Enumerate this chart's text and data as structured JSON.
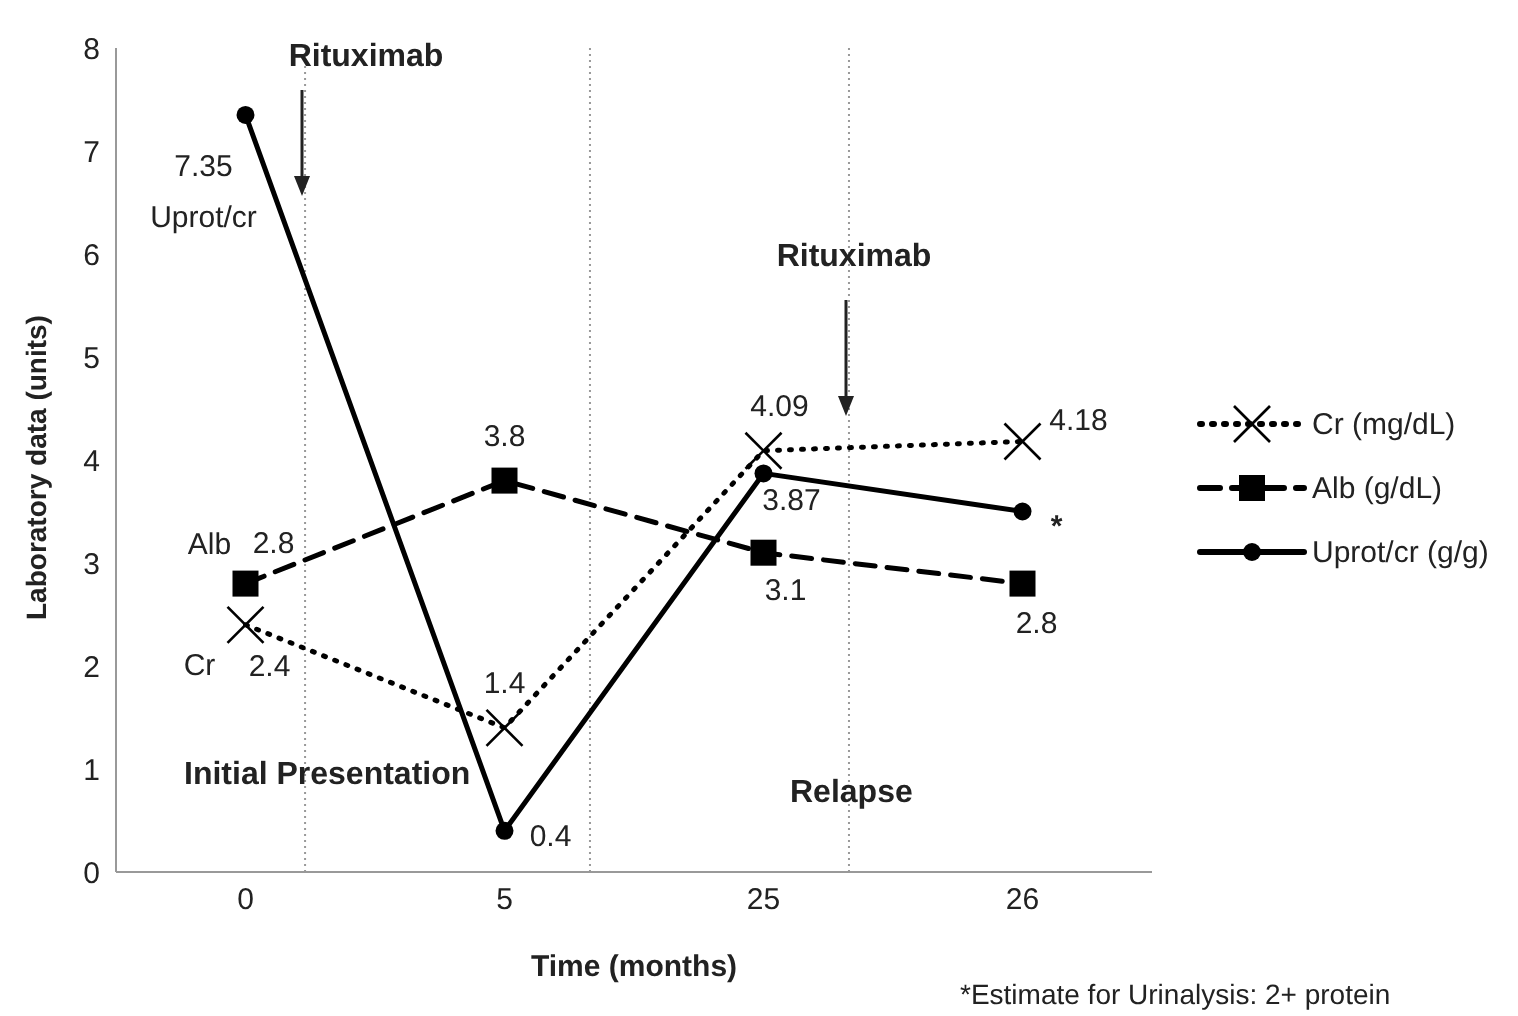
{
  "chart_data": {
    "type": "line",
    "xlabel": "Time (months)",
    "ylabel": "Laboratory data (units)",
    "categories": [
      "0",
      "5",
      "25",
      "26"
    ],
    "ylim": [
      0,
      8
    ],
    "yticks": [
      0,
      1,
      2,
      3,
      4,
      5,
      6,
      7,
      8
    ],
    "legend": "right",
    "series": [
      {
        "name": "Cr (mg/dL)",
        "color": "#000000",
        "marker": "cross",
        "line_style": "dotted",
        "values": [
          2.4,
          1.4,
          4.09,
          4.18
        ],
        "value_labels": [
          "2.4",
          "1.4",
          "4.09",
          "4.18"
        ]
      },
      {
        "name": "Alb (g/dL)",
        "color": "#000000",
        "marker": "square",
        "line_style": "dashed",
        "values": [
          2.8,
          3.8,
          3.1,
          2.8
        ],
        "value_labels": [
          "2.8",
          "3.8",
          "3.1",
          "2.8"
        ]
      },
      {
        "name": "Uprot/cr (g/g)",
        "color": "#000000",
        "marker": "circle",
        "line_style": "solid",
        "values": [
          7.35,
          0.4,
          3.87,
          3.5
        ],
        "value_labels": [
          "7.35",
          "0.4",
          "3.87",
          null
        ]
      }
    ],
    "annotations": [
      "Rituximab",
      "Rituximab",
      "Initial Presentation",
      "Relapse",
      "*Estimate for Urinalysis: 2+ protein",
      {
        "text": "Uprot/cr",
        "x": "0",
        "y": 7.35
      },
      {
        "text": "Alb",
        "x": "0",
        "y": 2.8
      },
      {
        "text": "Cr",
        "x": "0",
        "y": 2.4
      },
      {
        "text": "*",
        "x": "26",
        "y": 3.5
      }
    ]
  }
}
